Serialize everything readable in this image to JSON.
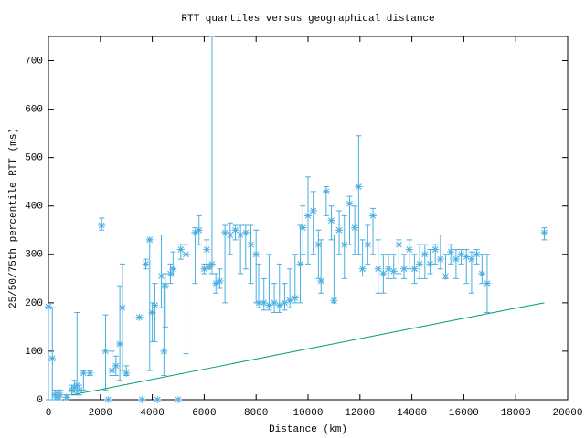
{
  "chart_data": {
    "type": "errorbar",
    "title": "RTT quartiles versus geographical distance",
    "xlabel": "Distance (km)",
    "ylabel": "25/50/75th percentile RTT (ms)",
    "xlim": [
      0,
      20000
    ],
    "ylim": [
      0,
      750
    ],
    "xticks": [
      0,
      2000,
      4000,
      6000,
      8000,
      10000,
      12000,
      14000,
      16000,
      18000,
      20000
    ],
    "yticks": [
      0,
      100,
      200,
      300,
      400,
      500,
      600,
      700
    ],
    "color": "#4aaee0",
    "x": [
      0,
      150,
      250,
      350,
      450,
      700,
      900,
      1000,
      1100,
      1200,
      1350,
      1600,
      2050,
      2200,
      2300,
      2450,
      2600,
      2750,
      2850,
      3000,
      3500,
      3600,
      3750,
      3900,
      4000,
      4100,
      4200,
      4350,
      4450,
      4500,
      4700,
      4800,
      5000,
      5100,
      5300,
      5650,
      5800,
      6000,
      6100,
      6200,
      6300,
      6450,
      6600,
      6800,
      7000,
      7200,
      7400,
      7600,
      7800,
      8000,
      8100,
      8300,
      8500,
      8700,
      8900,
      9100,
      9300,
      9500,
      9700,
      9800,
      10000,
      10200,
      10400,
      10500,
      10700,
      10900,
      11000,
      11200,
      11400,
      11600,
      11800,
      11950,
      12100,
      12300,
      12500,
      12700,
      12900,
      13100,
      13300,
      13500,
      13700,
      13900,
      14100,
      14300,
      14500,
      14700,
      14900,
      15100,
      15300,
      15500,
      15700,
      15900,
      16100,
      16300,
      16500,
      16700,
      16900,
      19100
    ],
    "values": [
      192,
      85,
      10,
      5,
      10,
      5,
      20,
      25,
      30,
      20,
      55,
      55,
      360,
      100,
      0,
      60,
      70,
      115,
      190,
      55,
      170,
      0,
      280,
      330,
      180,
      195,
      0,
      255,
      100,
      235,
      260,
      270,
      0,
      310,
      300,
      345,
      350,
      270,
      310,
      275,
      280,
      240,
      245,
      345,
      340,
      350,
      340,
      345,
      320,
      300,
      200,
      200,
      195,
      200,
      195,
      200,
      205,
      210,
      280,
      355,
      380,
      390,
      320,
      245,
      430,
      370,
      205,
      350,
      320,
      405,
      355,
      440,
      270,
      320,
      380,
      270,
      260,
      270,
      265,
      320,
      270,
      310,
      270,
      280,
      300,
      280,
      310,
      290,
      255,
      305,
      290,
      300,
      295,
      290,
      300,
      260,
      240,
      345
    ],
    "lower": [
      0,
      0,
      0,
      0,
      0,
      0,
      10,
      15,
      10,
      10,
      20,
      50,
      350,
      20,
      0,
      50,
      50,
      40,
      60,
      50,
      170,
      0,
      270,
      60,
      120,
      120,
      0,
      190,
      50,
      150,
      240,
      255,
      0,
      290,
      95,
      240,
      320,
      260,
      270,
      270,
      260,
      220,
      230,
      200,
      300,
      330,
      260,
      270,
      240,
      200,
      190,
      185,
      185,
      180,
      180,
      185,
      190,
      200,
      200,
      300,
      280,
      300,
      250,
      220,
      380,
      330,
      200,
      300,
      250,
      320,
      300,
      300,
      255,
      280,
      300,
      220,
      220,
      250,
      250,
      260,
      250,
      270,
      240,
      250,
      250,
      260,
      280,
      270,
      250,
      280,
      250,
      280,
      240,
      220,
      280,
      240,
      180,
      330
    ],
    "upper": [
      192,
      190,
      20,
      15,
      20,
      10,
      30,
      40,
      180,
      30,
      60,
      60,
      375,
      175,
      0,
      100,
      90,
      235,
      280,
      70,
      170,
      0,
      290,
      330,
      200,
      240,
      0,
      340,
      240,
      260,
      280,
      305,
      0,
      320,
      320,
      355,
      380,
      280,
      330,
      280,
      750,
      260,
      270,
      360,
      365,
      360,
      360,
      360,
      360,
      350,
      280,
      250,
      300,
      240,
      280,
      240,
      270,
      300,
      360,
      400,
      460,
      430,
      350,
      330,
      440,
      400,
      340,
      390,
      380,
      420,
      400,
      545,
      330,
      360,
      395,
      330,
      300,
      300,
      300,
      330,
      300,
      330,
      300,
      320,
      320,
      310,
      320,
      340,
      300,
      320,
      310,
      310,
      310,
      305,
      310,
      300,
      300,
      355
    ],
    "line": {
      "type": "line",
      "color": "#009e73",
      "x": [
        900,
        2000,
        4000,
        6000,
        8000,
        10000,
        12000,
        14000,
        16000,
        18000,
        19100
      ],
      "values": [
        10,
        21,
        42,
        63,
        84,
        105,
        126,
        147,
        168,
        189,
        200
      ]
    }
  }
}
